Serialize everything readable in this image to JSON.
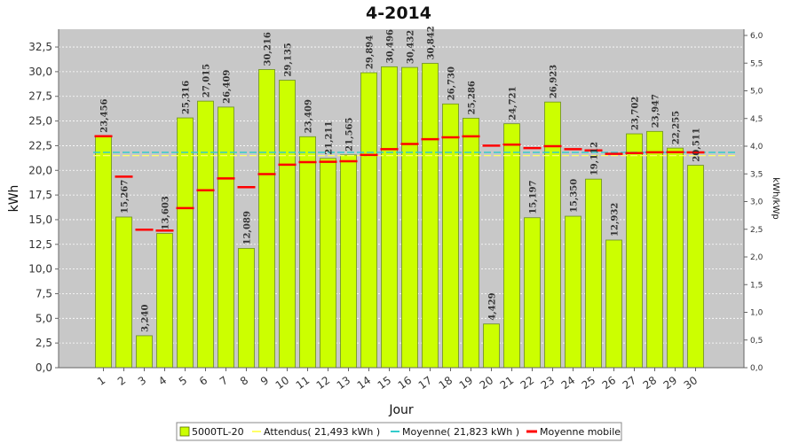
{
  "chart_data": {
    "type": "bar",
    "title": "4-2014",
    "xlabel": "Jour",
    "ylabel": "kWh",
    "y2label": "kWh/kWp",
    "ylim": [
      0,
      34.3
    ],
    "y_ticks": [
      "0,0",
      "2,5",
      "5,0",
      "7,5",
      "10,0",
      "12,5",
      "15,0",
      "17,5",
      "20,0",
      "22,5",
      "25,0",
      "27,5",
      "30,0",
      "32,5"
    ],
    "y2_ticks": [
      "0,0",
      "0,5",
      "1,0",
      "1,5",
      "2,0",
      "2,5",
      "3,0",
      "3,5",
      "4,0",
      "4,5",
      "5,0",
      "5,5",
      "6,0"
    ],
    "categories": [
      "1",
      "2",
      "3",
      "4",
      "5",
      "6",
      "7",
      "8",
      "9",
      "10",
      "11",
      "12",
      "13",
      "14",
      "15",
      "16",
      "17",
      "18",
      "19",
      "20",
      "21",
      "22",
      "23",
      "24",
      "25",
      "26",
      "27",
      "28",
      "29",
      "30"
    ],
    "series": [
      {
        "name": "5000TL-20",
        "type": "bar",
        "color": "#ccff00",
        "values": [
          23.456,
          15.267,
          3.24,
          13.603,
          25.316,
          27.015,
          26.409,
          12.089,
          30.216,
          29.135,
          23.409,
          21.211,
          21.565,
          29.894,
          30.496,
          30.432,
          30.842,
          26.73,
          25.286,
          4.429,
          24.721,
          15.197,
          26.923,
          15.35,
          19.112,
          12.932,
          23.702,
          23.947,
          22.255,
          20.511
        ],
        "labels": [
          "23,456",
          "15,267",
          "3,240",
          "13,603",
          "25,316",
          "27,015",
          "26,409",
          "12,089",
          "30,216",
          "29,135",
          "23,409",
          "21,211",
          "21,565",
          "29,894",
          "30,496",
          "30,432",
          "30,842",
          "26,730",
          "25,286",
          "4,429",
          "24,721",
          "15,197",
          "26,923",
          "15,350",
          "19,112",
          "12,932",
          "23,702",
          "23,947",
          "22,255",
          "20,511"
        ]
      },
      {
        "name": "Attendus( 21,493 kWh )",
        "type": "line",
        "color": "#ffff66",
        "value": 21.493
      },
      {
        "name": "Moyenne( 21,823 kWh )",
        "type": "line",
        "color": "#33cccc",
        "value": 21.823
      },
      {
        "name": "Moyenne mobile",
        "type": "marker",
        "color": "#ff0000",
        "values": [
          23.456,
          19.36,
          13.99,
          13.89,
          16.17,
          17.98,
          19.18,
          18.29,
          19.62,
          20.57,
          20.83,
          20.86,
          20.92,
          21.56,
          22.15,
          22.67,
          23.15,
          23.35,
          23.45,
          22.5,
          22.6,
          22.26,
          22.45,
          22.14,
          22.02,
          21.67,
          21.75,
          21.83,
          21.84,
          21.82
        ]
      }
    ],
    "grid": true,
    "legend_position": "bottom"
  }
}
